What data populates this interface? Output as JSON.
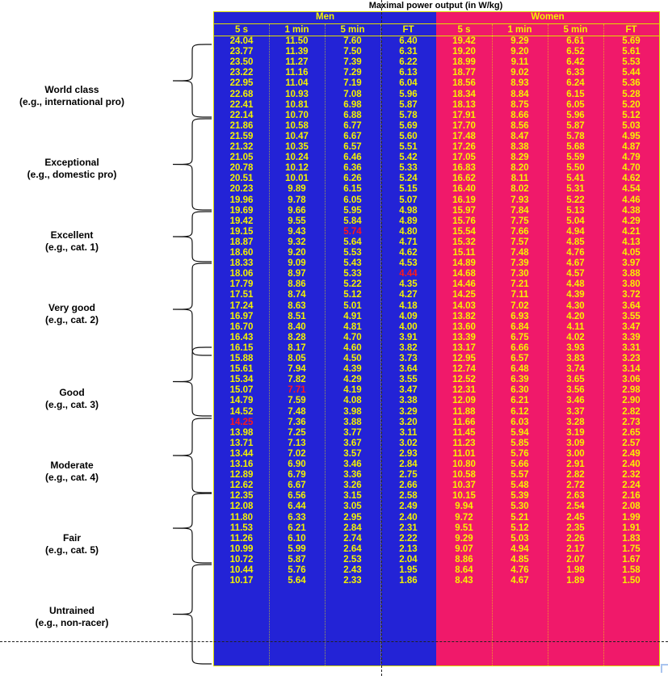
{
  "title": "Maximal power output (in W/kg)",
  "colors": {
    "men_bg": "#2323d6",
    "women_bg": "#f0196a",
    "text": "#f3f300",
    "highlight": "#ff1a1a"
  },
  "groups": [
    "Men",
    "Women"
  ],
  "columns": [
    "5 s",
    "1 min",
    "5 min",
    "FT"
  ],
  "categories": [
    {
      "name": "World class",
      "example": "(e.g., international pro)"
    },
    {
      "name": "Exceptional",
      "example": "(e.g., domestic pro)"
    },
    {
      "name": "Excellent",
      "example": "(e.g., cat. 1)"
    },
    {
      "name": "Very good",
      "example": "(e.g., cat. 2)"
    },
    {
      "name": "Good",
      "example": "(e.g., cat. 3)"
    },
    {
      "name": "Moderate",
      "example": "(e.g., cat. 4)"
    },
    {
      "name": "Fair",
      "example": "(e.g., cat. 5)"
    },
    {
      "name": "Untrained",
      "example": "(e.g., non-racer)"
    }
  ],
  "chart_data": {
    "type": "table",
    "title": "Maximal power output (in W/kg)",
    "series": [
      {
        "name": "Men 5 s",
        "values": [
          "24.04",
          "23.77",
          "23.50",
          "23.22",
          "22.95",
          "22.68",
          "22.41",
          "22.14",
          "21.86",
          "21.59",
          "21.32",
          "21.05",
          "20.78",
          "20.51",
          "20.23",
          "19.96",
          "19.69",
          "19.42",
          "19.15",
          "18.87",
          "18.60",
          "18.33",
          "18.06",
          "17.79",
          "17.51",
          "17.24",
          "16.97",
          "16.70",
          "16.43",
          "16.15",
          "15.88",
          "15.61",
          "15.34",
          "15.07",
          "14.79",
          "14.52",
          "14.25",
          "13.98",
          "13.71",
          "13.44",
          "13.16",
          "12.89",
          "12.62",
          "12.35",
          "12.08",
          "11.80",
          "11.53",
          "11.26",
          "10.99",
          "10.72",
          "10.44",
          "10.17"
        ]
      },
      {
        "name": "Men 1 min",
        "values": [
          "11.50",
          "11.39",
          "11.27",
          "11.16",
          "11.04",
          "10.93",
          "10.81",
          "10.70",
          "10.58",
          "10.47",
          "10.35",
          "10.24",
          "10.12",
          "10.01",
          "9.89",
          "9.78",
          "9.66",
          "9.55",
          "9.43",
          "9.32",
          "9.20",
          "9.09",
          "8.97",
          "8.86",
          "8.74",
          "8.63",
          "8.51",
          "8.40",
          "8.28",
          "8.17",
          "8.05",
          "7.94",
          "7.82",
          "7.71",
          "7.59",
          "7.48",
          "7.36",
          "7.25",
          "7.13",
          "7.02",
          "6.90",
          "6.79",
          "6.67",
          "6.56",
          "6.44",
          "6.33",
          "6.21",
          "6.10",
          "5.99",
          "5.87",
          "5.76",
          "5.64"
        ]
      },
      {
        "name": "Men 5 min",
        "values": [
          "7.60",
          "7.50",
          "7.39",
          "7.29",
          "7.19",
          "7.08",
          "6.98",
          "6.88",
          "6.77",
          "6.67",
          "6.57",
          "6.46",
          "6.36",
          "6.26",
          "6.15",
          "6.05",
          "5.95",
          "5.84",
          "5.74",
          "5.64",
          "5.53",
          "5.43",
          "5.33",
          "5.22",
          "5.12",
          "5.01",
          "4.91",
          "4.81",
          "4.70",
          "4.60",
          "4.50",
          "4.39",
          "4.29",
          "4.19",
          "4.08",
          "3.98",
          "3.88",
          "3.77",
          "3.67",
          "3.57",
          "3.46",
          "3.36",
          "3.26",
          "3.15",
          "3.05",
          "2.95",
          "2.84",
          "2.74",
          "2.64",
          "2.53",
          "2.43",
          "2.33"
        ]
      },
      {
        "name": "Men FT",
        "values": [
          "6.40",
          "6.31",
          "6.22",
          "6.13",
          "6.04",
          "5.96",
          "5.87",
          "5.78",
          "5.69",
          "5.60",
          "5.51",
          "5.42",
          "5.33",
          "5.24",
          "5.15",
          "5.07",
          "4.98",
          "4.89",
          "4.80",
          "4.71",
          "4.62",
          "4.53",
          "4.44",
          "4.35",
          "4.27",
          "4.18",
          "4.09",
          "4.00",
          "3.91",
          "3.82",
          "3.73",
          "3.64",
          "3.55",
          "3.47",
          "3.38",
          "3.29",
          "3.20",
          "3.11",
          "3.02",
          "2.93",
          "2.84",
          "2.75",
          "2.66",
          "2.58",
          "2.49",
          "2.40",
          "2.31",
          "2.22",
          "2.13",
          "2.04",
          "1.95",
          "1.86"
        ]
      },
      {
        "name": "Women 5 s",
        "values": [
          "19.42",
          "19.20",
          "18.99",
          "18.77",
          "18.56",
          "18.34",
          "18.13",
          "17.91",
          "17.70",
          "17.48",
          "17.26",
          "17.05",
          "16.83",
          "16.62",
          "16.40",
          "16.19",
          "15.97",
          "15.76",
          "15.54",
          "15.32",
          "15.11",
          "14.89",
          "14.68",
          "14.46",
          "14.25",
          "14.03",
          "13.82",
          "13.60",
          "13.39",
          "13.17",
          "12.95",
          "12.74",
          "12.52",
          "12.31",
          "12.09",
          "11.88",
          "11.66",
          "11.45",
          "11.23",
          "11.01",
          "10.80",
          "10.58",
          "10.37",
          "10.15",
          "9.94",
          "9.72",
          "9.51",
          "9.29",
          "9.07",
          "8.86",
          "8.64",
          "8.43"
        ]
      },
      {
        "name": "Women 1 min",
        "values": [
          "9.29",
          "9.20",
          "9.11",
          "9.02",
          "8.93",
          "8.84",
          "8.75",
          "8.66",
          "8.56",
          "8.47",
          "8.38",
          "8.29",
          "8.20",
          "8.11",
          "8.02",
          "7.93",
          "7.84",
          "7.75",
          "7.66",
          "7.57",
          "7.48",
          "7.39",
          "7.30",
          "7.21",
          "7.11",
          "7.02",
          "6.93",
          "6.84",
          "6.75",
          "6.66",
          "6.57",
          "6.48",
          "6.39",
          "6.30",
          "6.21",
          "6.12",
          "6.03",
          "5.94",
          "5.85",
          "5.76",
          "5.66",
          "5.57",
          "5.48",
          "5.39",
          "5.30",
          "5.21",
          "5.12",
          "5.03",
          "4.94",
          "4.85",
          "4.76",
          "4.67"
        ]
      },
      {
        "name": "Women 5 min",
        "values": [
          "6.61",
          "6.52",
          "6.42",
          "6.33",
          "6.24",
          "6.15",
          "6.05",
          "5.96",
          "5.87",
          "5.78",
          "5.68",
          "5.59",
          "5.50",
          "5.41",
          "5.31",
          "5.22",
          "5.13",
          "5.04",
          "4.94",
          "4.85",
          "4.76",
          "4.67",
          "4.57",
          "4.48",
          "4.39",
          "4.30",
          "4.20",
          "4.11",
          "4.02",
          "3.93",
          "3.83",
          "3.74",
          "3.65",
          "3.56",
          "3.46",
          "3.37",
          "3.28",
          "3.19",
          "3.09",
          "3.00",
          "2.91",
          "2.82",
          "2.72",
          "2.63",
          "2.54",
          "2.45",
          "2.35",
          "2.26",
          "2.17",
          "2.07",
          "1.98",
          "1.89"
        ]
      },
      {
        "name": "Women FT",
        "values": [
          "5.69",
          "5.61",
          "5.53",
          "5.44",
          "5.36",
          "5.28",
          "5.20",
          "5.12",
          "5.03",
          "4.95",
          "4.87",
          "4.79",
          "4.70",
          "4.62",
          "4.54",
          "4.46",
          "4.38",
          "4.29",
          "4.21",
          "4.13",
          "4.05",
          "3.97",
          "3.88",
          "3.80",
          "3.72",
          "3.64",
          "3.55",
          "3.47",
          "3.39",
          "3.31",
          "3.23",
          "3.14",
          "3.06",
          "2.98",
          "2.90",
          "2.82",
          "2.73",
          "2.65",
          "2.57",
          "2.49",
          "2.40",
          "2.32",
          "2.24",
          "2.16",
          "2.08",
          "1.99",
          "1.91",
          "1.83",
          "1.75",
          "1.67",
          "1.58",
          "1.50"
        ]
      }
    ],
    "highlighted": [
      {
        "series": "Men 5 min",
        "value": "5.74"
      },
      {
        "series": "Men FT",
        "value": "4.44"
      },
      {
        "series": "Men 1 min",
        "value": "7.71"
      },
      {
        "series": "Men 5 s",
        "value": "14.25"
      }
    ]
  }
}
